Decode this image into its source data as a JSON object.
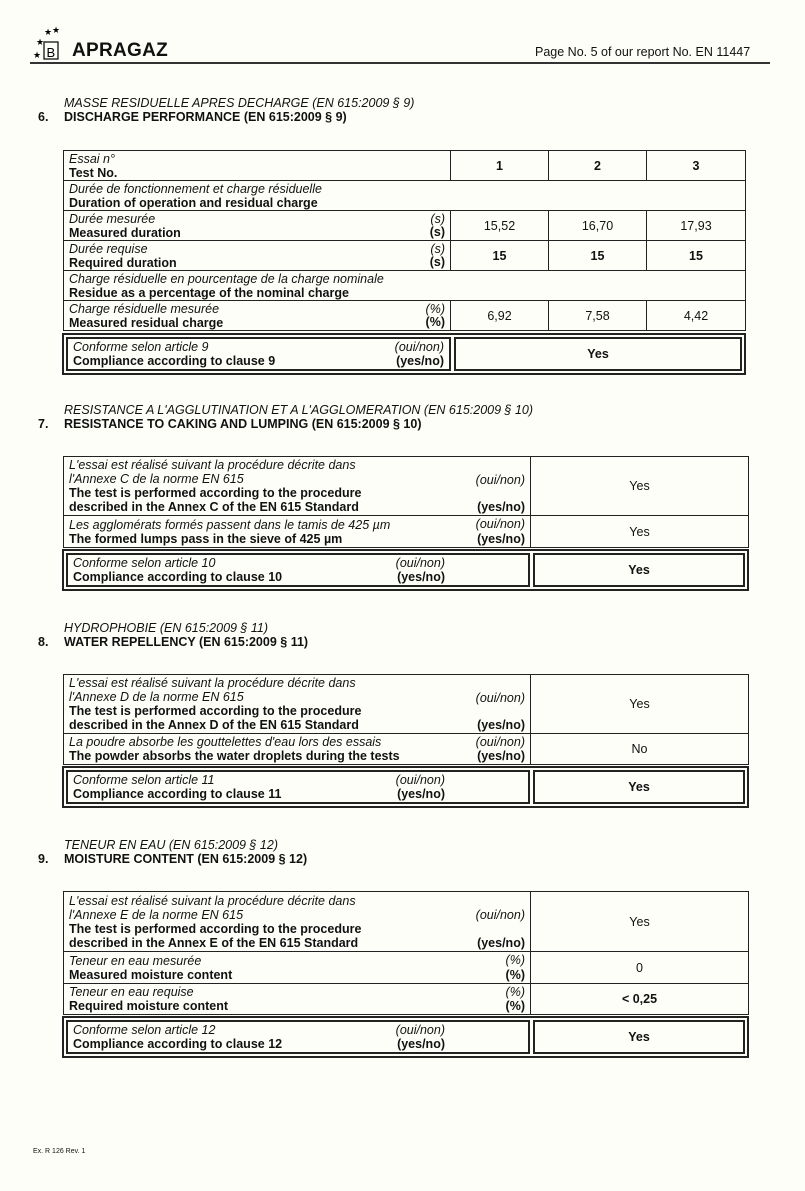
{
  "header": {
    "logo_text": "APRAGAZ",
    "page_ref": "Page No. 5 of our report No. EN 11447"
  },
  "s6": {
    "title_fr": "MASSE RESIDUELLE APRES DECHARGE (EN 615:2009 § 9)",
    "num": "6.",
    "title_en": "DISCHARGE PERFORMANCE (EN 615:2009 § 9)",
    "test_fr": "Essai n°",
    "test_en": "Test No.",
    "tests": [
      "1",
      "2",
      "3"
    ],
    "dur_fr": "Durée de fonctionnement et charge résiduelle",
    "dur_en": "Duration of operation and residual charge",
    "meas_fr": "Durée mesurée",
    "meas_en": "Measured duration",
    "unit_s": "(s)",
    "measured": [
      "15,52",
      "16,70",
      "17,93"
    ],
    "req_fr": "Durée requise",
    "req_en": "Required duration",
    "required": [
      "15",
      "15",
      "15"
    ],
    "res_fr": "Charge résiduelle en pourcentage de la charge nominale",
    "res_en": "Residue as a percentage of the nominal charge",
    "rc_fr": "Charge résiduelle mesurée",
    "rc_en": "Measured residual charge",
    "unit_pct": "(%)",
    "residual": [
      "6,92",
      "7,58",
      "4,42"
    ],
    "comp_fr": "Conforme selon article 9",
    "comp_en": "Compliance according to clause 9",
    "yn_fr": "(oui/non)",
    "yn_en": "(yes/no)",
    "comp_val": "Yes"
  },
  "s7": {
    "title_fr": "RESISTANCE A L'AGGLUTINATION ET A L'AGGLOMERATION (EN 615:2009 § 10)",
    "num": "7.",
    "title_en": "RESISTANCE TO CAKING AND LUMPING (EN 615:2009 § 10)",
    "r1_fr1": "L'essai est réalisé suivant la procédure décrite dans",
    "r1_fr2": "l'Annexe C de la norme EN 615",
    "r1_en1": "The test is performed according to the procedure",
    "r1_en2": "described in the Annex C of the EN 615 Standard",
    "r1_val": "Yes",
    "r2_fr": "Les agglomérats formés passent dans le tamis de 425 µm",
    "r2_en": "The formed lumps pass in the sieve of 425 µm",
    "r2_val": "Yes",
    "yn_fr": "(oui/non)",
    "yn_en": "(yes/no)",
    "comp_fr": "Conforme selon article 10",
    "comp_en": "Compliance according to clause 10",
    "comp_val": "Yes"
  },
  "s8": {
    "title_fr": "HYDROPHOBIE (EN 615:2009 § 11)",
    "num": "8.",
    "title_en": "WATER REPELLENCY (EN 615:2009 § 11)",
    "r1_fr1": "L'essai est réalisé suivant la procédure décrite dans",
    "r1_fr2": "l'Annexe D de la norme EN 615",
    "r1_en1": "The test is performed according to the procedure",
    "r1_en2": "described in the Annex D of the EN 615 Standard",
    "r1_val": "Yes",
    "r2_fr": "La poudre absorbe les gouttelettes d'eau lors des essais",
    "r2_en": "The powder absorbs the water droplets during the tests",
    "r2_val": "No",
    "yn_fr": "(oui/non)",
    "yn_en": "(yes/no)",
    "comp_fr": "Conforme selon article 11",
    "comp_en": "Compliance according to clause 11",
    "comp_val": "Yes"
  },
  "s9": {
    "title_fr": "TENEUR EN EAU (EN 615:2009 § 12)",
    "num": "9.",
    "title_en": "MOISTURE CONTENT (EN 615:2009 § 12)",
    "r1_fr1": "L'essai est réalisé suivant la procédure décrite dans",
    "r1_fr2": "l'Annexe E de la norme EN 615",
    "r1_en1": "The test is performed according to the procedure",
    "r1_en2": "described in the Annex E of the EN 615 Standard",
    "r1_val": "Yes",
    "r2_fr": "Teneur en eau mesurée",
    "r2_en": "Measured moisture content",
    "r2_val": "0",
    "r3_fr": "Teneur en eau requise",
    "r3_en": "Required moisture content",
    "r3_val": "< 0,25",
    "unit_pct": "(%)",
    "yn_fr": "(oui/non)",
    "yn_en": "(yes/no)",
    "comp_fr": "Conforme selon article 12",
    "comp_en": "Compliance according to clause 12",
    "comp_val": "Yes"
  },
  "footer": {
    "ref": "Ex. R 126 Rev. 1"
  }
}
